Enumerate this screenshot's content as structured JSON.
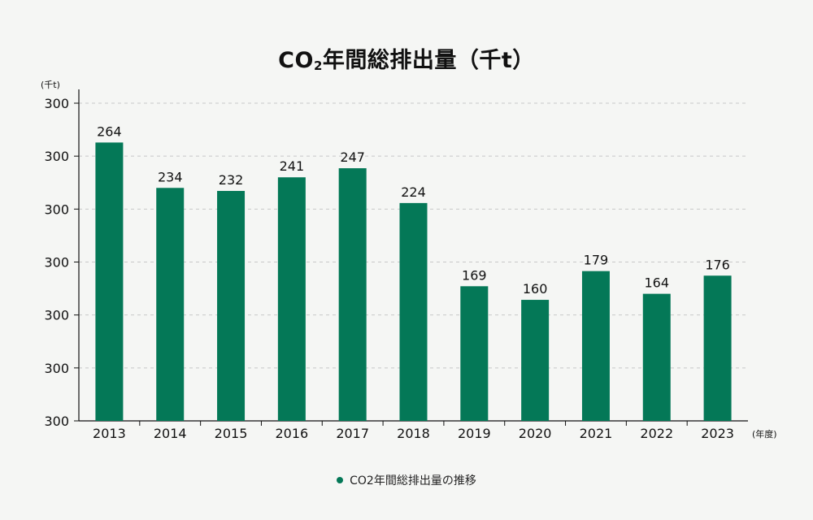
{
  "title": {
    "main": "CO",
    "sub": "2",
    "rest": "年間総排出量（千t）"
  },
  "chart_data": {
    "type": "bar",
    "title": "CO₂年間総排出量（千t）",
    "y_unit_label": "(千t)",
    "x_unit_label": "(年度)",
    "categories": [
      "2013",
      "2014",
      "2015",
      "2016",
      "2017",
      "2018",
      "2019",
      "2020",
      "2021",
      "2022",
      "2023"
    ],
    "series": [
      {
        "name": "CO2年間総排出量の推移",
        "values": [
          264,
          234,
          232,
          241,
          247,
          224,
          169,
          160,
          179,
          164,
          176
        ],
        "color": "#047857"
      }
    ],
    "y_tick_labels": [
      "300",
      "300",
      "300",
      "300",
      "300",
      "300",
      "300"
    ],
    "ylim": [
      80,
      290
    ],
    "grid": true,
    "legend_position": "bottom-center"
  },
  "legend": {
    "label": "CO2年間総排出量の推移"
  }
}
